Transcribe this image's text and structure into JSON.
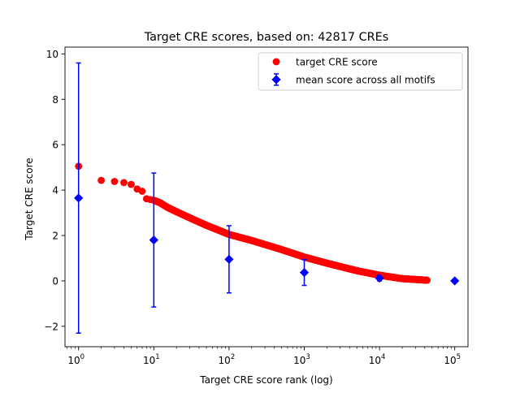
{
  "chart_data": {
    "type": "scatter",
    "title": "Target CRE scores, based on: 42817 CREs",
    "xlabel": "Target CRE score rank (log)",
    "ylabel": "Target CRE score",
    "xscale": "log",
    "xlim": [
      0.66,
      150000
    ],
    "ylim": [
      -2.9,
      10.3
    ],
    "x_ticks": [
      {
        "value": 1,
        "base": "10",
        "exp": "0"
      },
      {
        "value": 10,
        "base": "10",
        "exp": "1"
      },
      {
        "value": 100,
        "base": "10",
        "exp": "2"
      },
      {
        "value": 1000,
        "base": "10",
        "exp": "3"
      },
      {
        "value": 10000,
        "base": "10",
        "exp": "4"
      },
      {
        "value": 100000,
        "base": "10",
        "exp": "5"
      }
    ],
    "y_ticks": [
      {
        "value": -2,
        "label": "−2"
      },
      {
        "value": 0,
        "label": "0"
      },
      {
        "value": 2,
        "label": "2"
      },
      {
        "value": 4,
        "label": "4"
      },
      {
        "value": 6,
        "label": "6"
      },
      {
        "value": 8,
        "label": "8"
      },
      {
        "value": 10,
        "label": "10"
      }
    ],
    "grid": false,
    "legend_position": "top-right",
    "series": [
      {
        "name": "target CRE score",
        "marker": "circle",
        "color": "#ff0000",
        "curve": {
          "knots": [
            [
              1,
              5.05
            ],
            [
              2,
              4.43
            ],
            [
              3,
              4.38
            ],
            [
              4,
              4.33
            ],
            [
              5,
              4.25
            ],
            [
              6,
              4.05
            ],
            [
              7,
              3.95
            ],
            [
              8,
              3.62
            ],
            [
              10,
              3.55
            ],
            [
              12,
              3.45
            ],
            [
              15,
              3.25
            ],
            [
              20,
              3.05
            ],
            [
              30,
              2.78
            ],
            [
              50,
              2.45
            ],
            [
              100,
              2.05
            ],
            [
              200,
              1.78
            ],
            [
              500,
              1.38
            ],
            [
              1000,
              1.05
            ],
            [
              2000,
              0.78
            ],
            [
              5000,
              0.45
            ],
            [
              10000,
              0.25
            ],
            [
              20000,
              0.1
            ],
            [
              42817,
              0.03
            ]
          ],
          "points_per_decade": 200
        }
      },
      {
        "name": "mean score across all motifs",
        "marker": "diamond",
        "color": "#0000ff",
        "points": [
          {
            "x": 1,
            "y": 3.65,
            "yerr": 5.95
          },
          {
            "x": 10,
            "y": 1.8,
            "yerr": 2.95
          },
          {
            "x": 100,
            "y": 0.95,
            "yerr": 1.48
          },
          {
            "x": 1000,
            "y": 0.37,
            "yerr": 0.57
          },
          {
            "x": 10000,
            "y": 0.12,
            "yerr": 0.12
          },
          {
            "x": 100000,
            "y": 0.0,
            "yerr": 0.0
          }
        ]
      }
    ]
  }
}
